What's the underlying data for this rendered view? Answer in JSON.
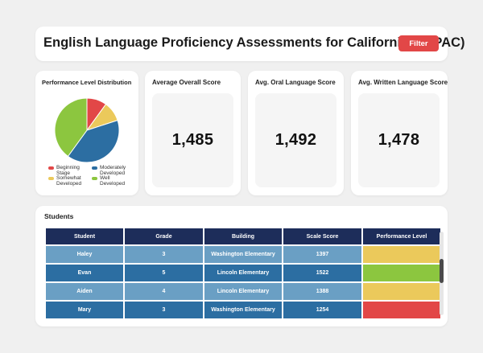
{
  "header": {
    "title": "English Language Proficiency Assessments for California (ELPAC)",
    "filter_label": "Filter"
  },
  "pie": {
    "title": "Performance Level Distribution",
    "chart_data": {
      "type": "pie",
      "slices": [
        {
          "label": "Beginning Stage",
          "value": 1,
          "color": "#e24747"
        },
        {
          "label": "Somewhat Developed",
          "value": 1,
          "color": "#ebc95b"
        },
        {
          "label": "Moderately Developed",
          "value": 4,
          "color": "#2c6ea2"
        },
        {
          "label": "Well Developed",
          "value": 4,
          "color": "#8cc63f"
        }
      ]
    },
    "legend": [
      {
        "label": "Beginning Stage",
        "color": "#e24747"
      },
      {
        "label": "Moderately Developed",
        "color": "#2c6ea2"
      },
      {
        "label": "Somewhat Developed",
        "color": "#ebc95b"
      },
      {
        "label": "Well Developed",
        "color": "#8cc63f"
      }
    ]
  },
  "kpis": [
    {
      "title": "Average Overall Score",
      "value": "1,485"
    },
    {
      "title": "Avg. Oral Language Score",
      "value": "1,492"
    },
    {
      "title": "Avg. Written Language Score",
      "value": "1,478"
    }
  ],
  "students": {
    "title": "Students",
    "columns": [
      "Student",
      "Grade",
      "Building",
      "Scale Score",
      "Performance Level"
    ],
    "rows": [
      {
        "student": "Haley",
        "grade": "3",
        "building": "Washington Elementary",
        "score": "1397",
        "level_color": "#ebc95b"
      },
      {
        "student": "Evan",
        "grade": "5",
        "building": "Lincoln Elementary",
        "score": "1522",
        "level_color": "#8cc63f"
      },
      {
        "student": "Aiden",
        "grade": "4",
        "building": "Lincoln Elementary",
        "score": "1388",
        "level_color": "#ebc95b"
      },
      {
        "student": "Mary",
        "grade": "3",
        "building": "Washington Elementary",
        "score": "1254",
        "level_color": "#e24747"
      }
    ]
  }
}
